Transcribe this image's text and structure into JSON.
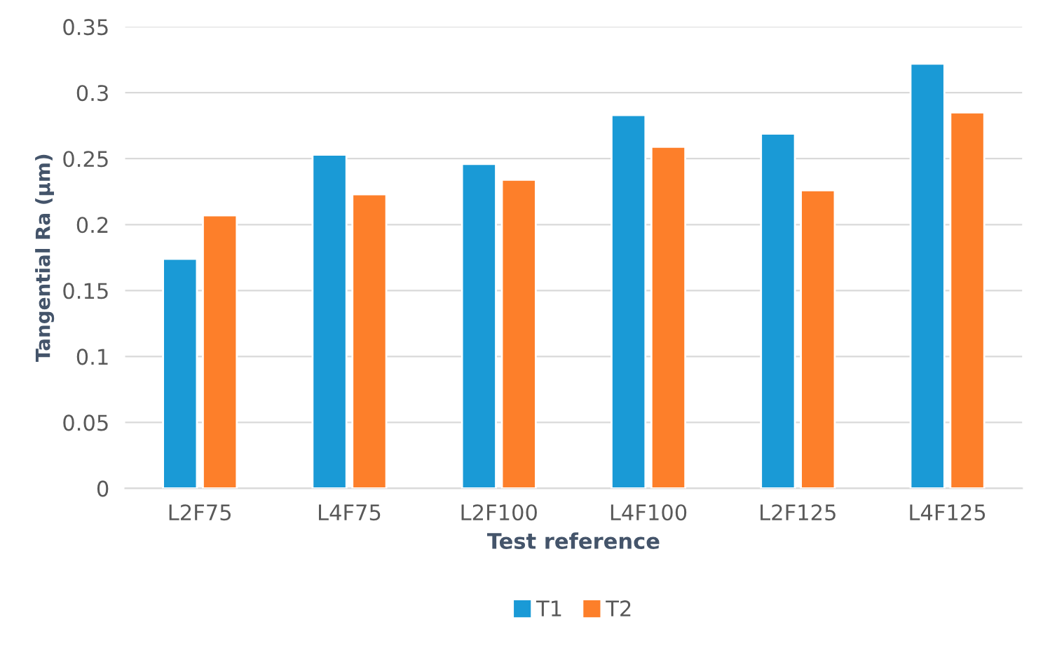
{
  "chart_data": {
    "type": "bar",
    "xlabel": "Test reference",
    "ylabel": "Tangential Ra (µm)",
    "categories": [
      "L2F75",
      "L4F75",
      "L2F100",
      "L4F100",
      "L2F125",
      "L4F125"
    ],
    "series": [
      {
        "name": "T1",
        "color": "#1a9ad6",
        "values": [
          0.174,
          0.253,
          0.246,
          0.283,
          0.269,
          0.322
        ]
      },
      {
        "name": "T2",
        "color": "#fd7f2a",
        "values": [
          0.207,
          0.223,
          0.234,
          0.259,
          0.226,
          0.285
        ]
      }
    ],
    "ylim": [
      0,
      0.35
    ],
    "yticks": [
      {
        "value": 0,
        "label": "0"
      },
      {
        "value": 0.05,
        "label": "0.05"
      },
      {
        "value": 0.1,
        "label": "0.1"
      },
      {
        "value": 0.15,
        "label": "0.15"
      },
      {
        "value": 0.2,
        "label": "0.2"
      },
      {
        "value": 0.25,
        "label": "0.25"
      },
      {
        "value": 0.3,
        "label": "0.3"
      },
      {
        "value": 0.35,
        "label": "0.35"
      }
    ],
    "grid": "y",
    "legend": "bottom"
  }
}
